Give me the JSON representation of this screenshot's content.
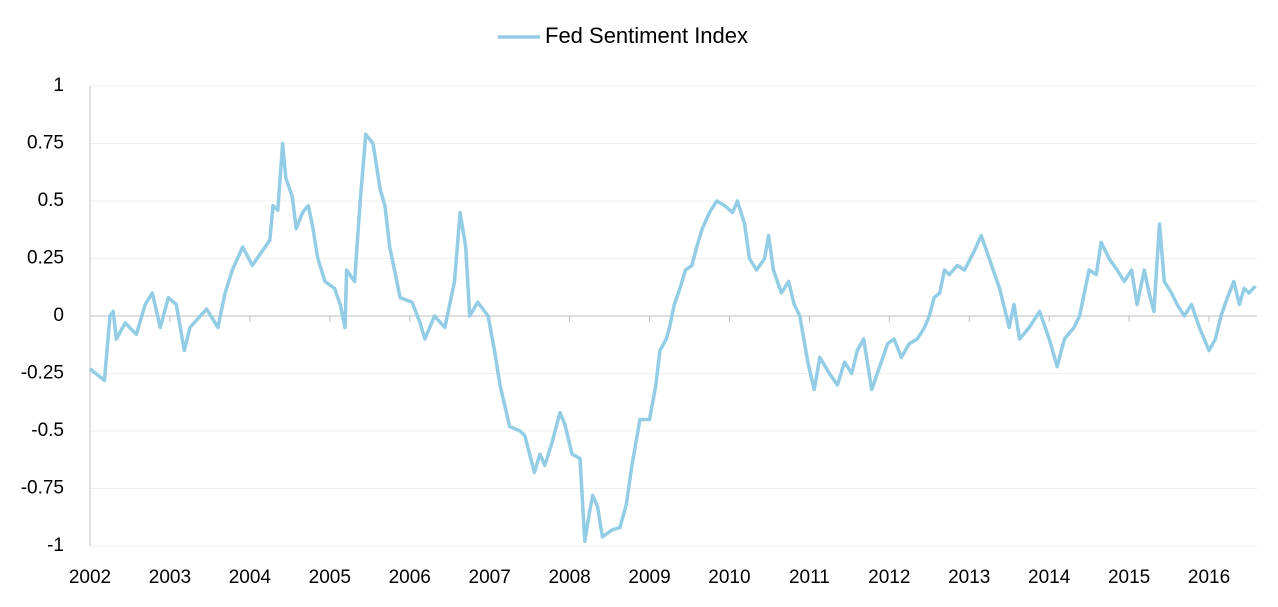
{
  "chart_data": {
    "type": "line",
    "x": [
      2002.0,
      2002.18,
      2002.25,
      2002.29,
      2002.33,
      2002.44,
      2002.58,
      2002.69,
      2002.78,
      2002.88,
      2002.98,
      2003.08,
      2003.18,
      2003.25,
      2003.38,
      2003.46,
      2003.6,
      2003.69,
      2003.78,
      2003.91,
      2004.03,
      2004.19,
      2004.25,
      2004.29,
      2004.35,
      2004.41,
      2004.45,
      2004.53,
      2004.58,
      2004.66,
      2004.73,
      2004.78,
      2004.85,
      2004.94,
      2005.06,
      2005.13,
      2005.19,
      2005.21,
      2005.31,
      2005.38,
      2005.45,
      2005.54,
      2005.63,
      2005.69,
      2005.75,
      2005.81,
      2005.88,
      2006.03,
      2006.13,
      2006.19,
      2006.31,
      2006.44,
      2006.5,
      2006.56,
      2006.63,
      2006.7,
      2006.75,
      2006.85,
      2006.98,
      2007.06,
      2007.13,
      2007.25,
      2007.38,
      2007.44,
      2007.5,
      2007.56,
      2007.63,
      2007.69,
      2007.78,
      2007.88,
      2007.94,
      2008.03,
      2008.13,
      2008.19,
      2008.25,
      2008.29,
      2008.35,
      2008.41,
      2008.53,
      2008.63,
      2008.71,
      2008.78,
      2008.88,
      2009.0,
      2009.08,
      2009.13,
      2009.21,
      2009.25,
      2009.31,
      2009.38,
      2009.45,
      2009.53,
      2009.59,
      2009.66,
      2009.75,
      2009.84,
      2009.94,
      2010.04,
      2010.1,
      2010.19,
      2010.25,
      2010.34,
      2010.44,
      2010.49,
      2010.55,
      2010.65,
      2010.74,
      2010.81,
      2010.88,
      2010.98,
      2011.06,
      2011.13,
      2011.25,
      2011.35,
      2011.44,
      2011.53,
      2011.6,
      2011.68,
      2011.78,
      2011.85,
      2011.98,
      2012.06,
      2012.15,
      2012.25,
      2012.35,
      2012.44,
      2012.5,
      2012.56,
      2012.63,
      2012.69,
      2012.75,
      2012.85,
      2012.94,
      2013.06,
      2013.15,
      2013.25,
      2013.38,
      2013.5,
      2013.56,
      2013.63,
      2013.75,
      2013.88,
      2014.0,
      2014.1,
      2014.19,
      2014.31,
      2014.38,
      2014.44,
      2014.5,
      2014.59,
      2014.65,
      2014.75,
      2014.85,
      2014.94,
      2015.03,
      2015.1,
      2015.19,
      2015.25,
      2015.31,
      2015.38,
      2015.44,
      2015.53,
      2015.6,
      2015.69,
      2015.78,
      2015.88,
      2016.0,
      2016.08,
      2016.15,
      2016.23,
      2016.31,
      2016.38,
      2016.44,
      2016.5,
      2016.58
    ],
    "series": [
      {
        "name": "Fed Sentiment Index",
        "color": "#92cde5",
        "values": [
          -0.23,
          -0.28,
          0,
          0.02,
          -0.1,
          -0.03,
          -0.08,
          0.05,
          0.1,
          -0.05,
          0.08,
          0.05,
          -0.15,
          -0.05,
          0,
          0.03,
          -0.05,
          0.1,
          0.2,
          0.3,
          0.22,
          0.3,
          0.33,
          0.48,
          0.46,
          0.75,
          0.6,
          0.52,
          0.38,
          0.45,
          0.48,
          0.4,
          0.25,
          0.15,
          0.12,
          0.05,
          -0.05,
          0.2,
          0.15,
          0.5,
          0.79,
          0.75,
          0.55,
          0.48,
          0.3,
          0.2,
          0.08,
          0.06,
          -0.03,
          -0.1,
          0,
          -0.05,
          0.05,
          0.15,
          0.45,
          0.3,
          0,
          0.06,
          0,
          -0.15,
          -0.3,
          -0.48,
          -0.5,
          -0.52,
          -0.6,
          -0.68,
          -0.6,
          -0.65,
          -0.55,
          -0.42,
          -0.47,
          -0.6,
          -0.62,
          -0.98,
          -0.85,
          -0.78,
          -0.83,
          -0.96,
          -0.93,
          -0.92,
          -0.82,
          -0.65,
          -0.45,
          -0.45,
          -0.3,
          -0.15,
          -0.1,
          -0.05,
          0.05,
          0.12,
          0.2,
          0.22,
          0.3,
          0.38,
          0.45,
          0.5,
          0.48,
          0.45,
          0.5,
          0.4,
          0.25,
          0.2,
          0.25,
          0.35,
          0.2,
          0.1,
          0.15,
          0.05,
          0,
          -0.2,
          -0.32,
          -0.18,
          -0.25,
          -0.3,
          -0.2,
          -0.25,
          -0.15,
          -0.1,
          -0.32,
          -0.25,
          -0.12,
          -0.1,
          -0.18,
          -0.12,
          -0.1,
          -0.05,
          0,
          0.08,
          0.1,
          0.2,
          0.18,
          0.22,
          0.2,
          0.28,
          0.35,
          0.25,
          0.12,
          -0.05,
          0.05,
          -0.1,
          -0.05,
          0.02,
          -0.1,
          -0.22,
          -0.1,
          -0.05,
          0,
          0.1,
          0.2,
          0.18,
          0.32,
          0.25,
          0.2,
          0.15,
          0.2,
          0.05,
          0.2,
          0.1,
          0.02,
          0.4,
          0.15,
          0.1,
          0.05,
          0,
          0.05,
          -0.05,
          -0.15,
          -0.1,
          0,
          0.08,
          0.15,
          0.05,
          0.12,
          0.1,
          0.13
        ]
      }
    ],
    "xlim": [
      2002,
      2016.6
    ],
    "xticks": [
      2002,
      2003,
      2004,
      2005,
      2006,
      2007,
      2008,
      2009,
      2010,
      2011,
      2012,
      2013,
      2014,
      2015,
      2016
    ],
    "ylim": [
      -1,
      1
    ],
    "yticks": [
      1,
      0.75,
      0.5,
      0.25,
      0,
      -0.25,
      -0.5,
      -0.75,
      -1
    ],
    "grid": true,
    "legend": "top"
  }
}
